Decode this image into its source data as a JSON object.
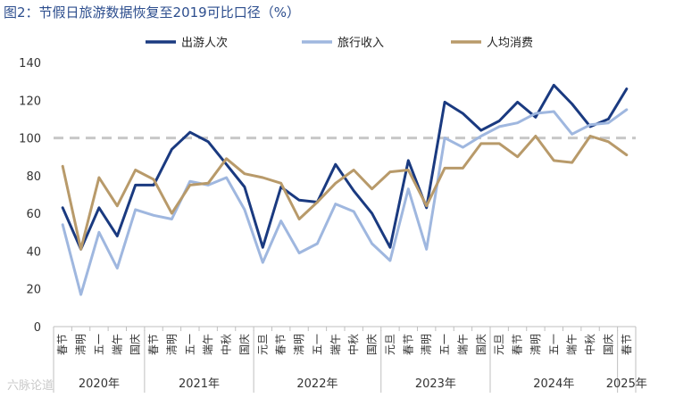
{
  "title": "图2：节假日旅游数据恢复至2019可比口径（%）",
  "watermark": "六脉论道",
  "chart_data": {
    "type": "line",
    "title": "图2：节假日旅游数据恢复至2019可比口径（%）",
    "ylim": [
      0,
      140
    ],
    "yticks": [
      0,
      20,
      40,
      60,
      80,
      100,
      120,
      140
    ],
    "reference_line": 100,
    "categories": [
      "春节",
      "清明",
      "五一",
      "端午",
      "国庆",
      "春节",
      "清明",
      "五一",
      "端午",
      "中秋",
      "国庆",
      "元旦",
      "春节",
      "清明",
      "五一",
      "端午",
      "中秋",
      "国庆",
      "元旦",
      "春节",
      "清明",
      "五一",
      "端午",
      "国庆",
      "元旦",
      "春节",
      "清明",
      "五一",
      "端午",
      "中秋",
      "国庆",
      "春节"
    ],
    "year_groups": [
      {
        "label": "2020年",
        "start": 0,
        "end": 4
      },
      {
        "label": "2021年",
        "start": 5,
        "end": 10
      },
      {
        "label": "2022年",
        "start": 11,
        "end": 17
      },
      {
        "label": "2023年",
        "start": 18,
        "end": 23
      },
      {
        "label": "2024年",
        "start": 24,
        "end": 30
      },
      {
        "label": "2025年",
        "start": 31,
        "end": 31
      }
    ],
    "series": [
      {
        "name": "出游人次",
        "color": "#1a3a80",
        "values": [
          63,
          41,
          63,
          48,
          75,
          75,
          94,
          103,
          98,
          86,
          74,
          42,
          74,
          67,
          66,
          86,
          72,
          60,
          42,
          88,
          63,
          119,
          113,
          104,
          109,
          119,
          111,
          128,
          118,
          106,
          110,
          126
        ]
      },
      {
        "name": "旅行收入",
        "color": "#9fb7df",
        "values": [
          54,
          17,
          50,
          31,
          62,
          59,
          57,
          77,
          75,
          79,
          62,
          34,
          56,
          39,
          44,
          65,
          61,
          44,
          35,
          73,
          41,
          100,
          95,
          101,
          106,
          108,
          113,
          114,
          102,
          107,
          108,
          115
        ]
      },
      {
        "name": "人均消费",
        "color": "#b89a6a",
        "values": [
          85,
          41,
          79,
          64,
          83,
          78,
          60,
          75,
          76,
          89,
          81,
          79,
          76,
          57,
          66,
          76,
          83,
          73,
          82,
          83,
          64,
          84,
          84,
          97,
          97,
          90,
          101,
          88,
          87,
          101,
          98,
          91
        ]
      }
    ]
  }
}
